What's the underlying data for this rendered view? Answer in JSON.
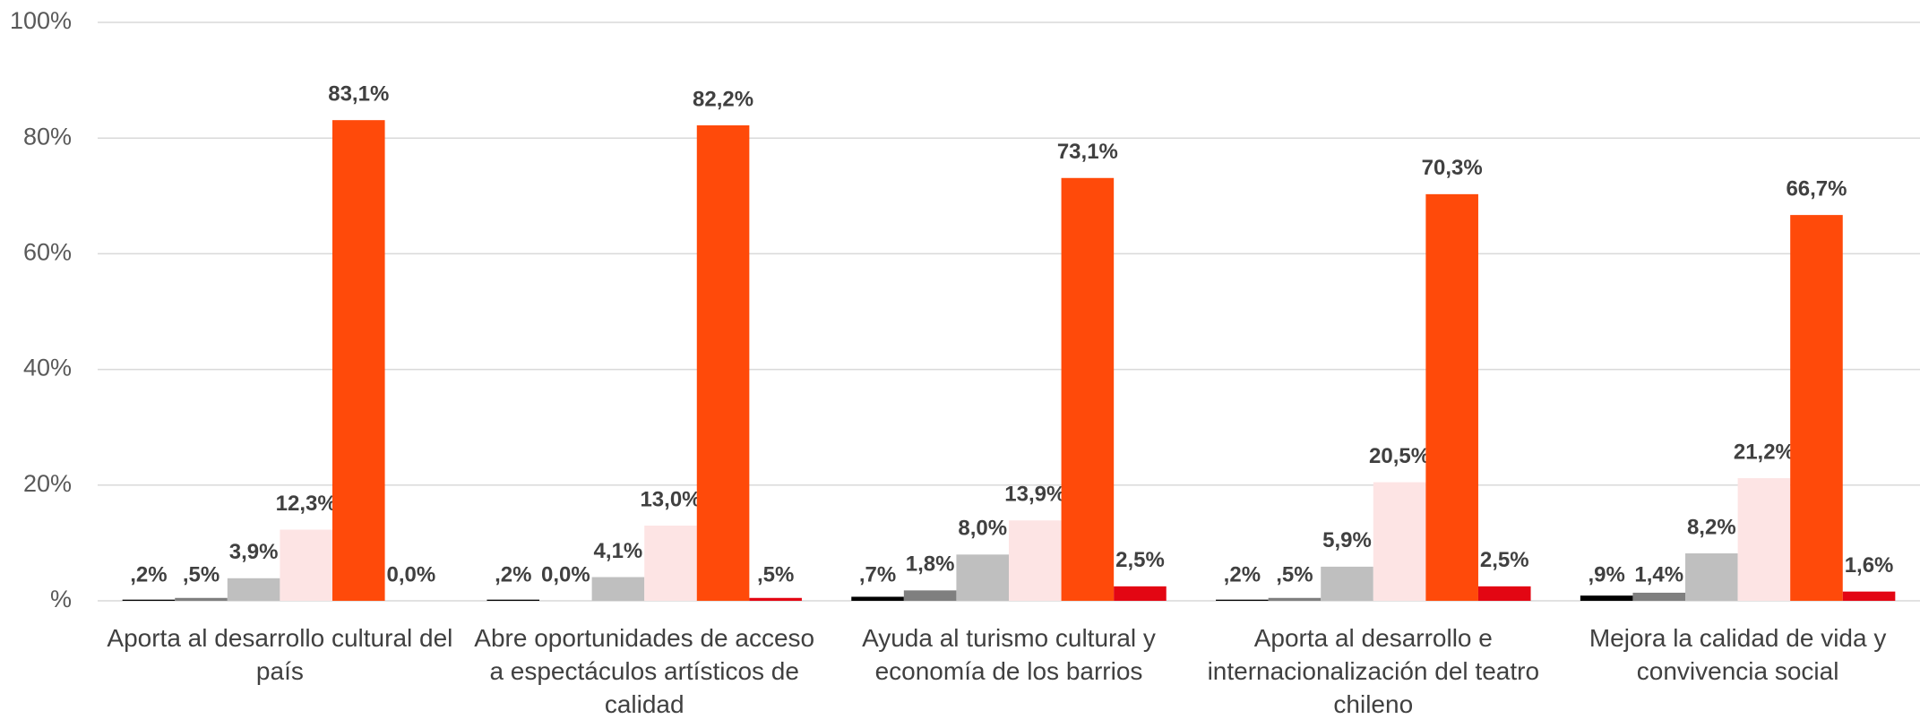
{
  "chart_data": {
    "type": "bar",
    "categories": [
      "Aporta al desarrollo cultural del país",
      "Abre oportunidades de acceso a espectáculos artísticos de calidad",
      "Ayuda al turismo cultural y economía de los barrios",
      "Aporta al desarrollo e internacionalización del teatro chileno",
      "Mejora la calidad de vida y convivencia social"
    ],
    "series": [
      {
        "color": "#000000",
        "values": [
          0.2,
          0.2,
          0.7,
          0.2,
          0.9
        ],
        "value_labels": [
          ",2%",
          ",2%",
          ",7%",
          ",2%",
          ",9%"
        ]
      },
      {
        "color": "#7f7f7f",
        "values": [
          0.5,
          0.0,
          1.8,
          0.5,
          1.4
        ],
        "value_labels": [
          ",5%",
          "0,0%",
          "1,8%",
          ",5%",
          "1,4%"
        ]
      },
      {
        "color": "#bfbfbf",
        "values": [
          3.9,
          4.1,
          8.0,
          5.9,
          8.2
        ],
        "value_labels": [
          "3,9%",
          "4,1%",
          "8,0%",
          "5,9%",
          "8,2%"
        ]
      },
      {
        "color": "#fde4e4",
        "values": [
          12.3,
          13.0,
          13.9,
          20.5,
          21.2
        ],
        "value_labels": [
          "12,3%",
          "13,0%",
          "13,9%",
          "20,5%",
          "21,2%"
        ]
      },
      {
        "color": "#ff4a0a",
        "values": [
          83.1,
          82.2,
          73.1,
          70.3,
          66.7
        ],
        "value_labels": [
          "83,1%",
          "82,2%",
          "73,1%",
          "70,3%",
          "66,7%"
        ]
      },
      {
        "color": "#e30613",
        "values": [
          0.0,
          0.5,
          2.5,
          2.5,
          1.6
        ],
        "value_labels": [
          "0,0%",
          ",5%",
          "2,5%",
          "2,5%",
          "1,6%"
        ]
      }
    ],
    "ylim": [
      0,
      100
    ],
    "yticks": [
      {
        "value": 0,
        "label": "%"
      },
      {
        "value": 20,
        "label": "20%"
      },
      {
        "value": 40,
        "label": "40%"
      },
      {
        "value": 60,
        "label": "60%"
      },
      {
        "value": 80,
        "label": "80%"
      },
      {
        "value": 100,
        "label": "100%"
      }
    ],
    "grid": true
  }
}
